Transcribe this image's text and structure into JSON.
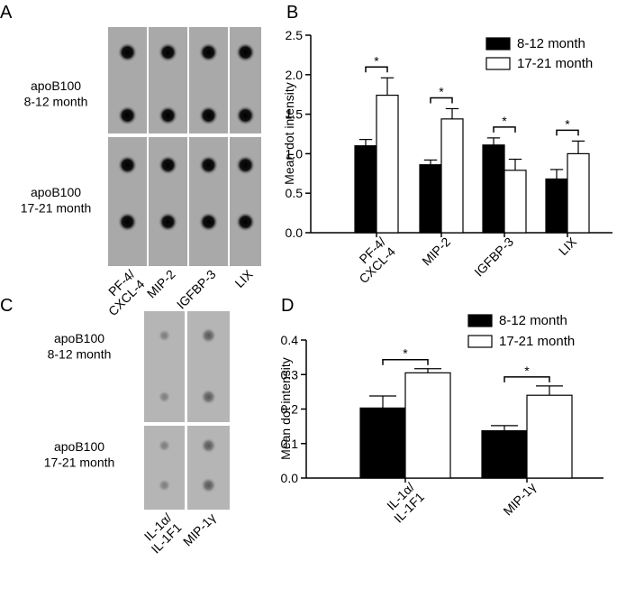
{
  "blots": [
    {
      "panel": "A",
      "row_labels": [
        [
          "apoB100",
          "8-12 month"
        ],
        [
          "apoB100",
          "17-21 month"
        ]
      ],
      "column_labels": [
        [
          "PF-4/",
          "CXCL-4"
        ],
        [
          "MIP-2"
        ],
        [
          "IGFBP-3"
        ],
        [
          "LIX"
        ]
      ]
    },
    {
      "panel": "C",
      "row_labels": [
        [
          "apoB100",
          "8-12 month"
        ],
        [
          "apoB100",
          "17-21 month"
        ]
      ],
      "column_labels": [
        [
          "IL-1α/",
          "IL-1F1"
        ],
        [
          "MIP-1γ"
        ]
      ]
    }
  ],
  "chart_data": [
    {
      "type": "bar",
      "panel": "B",
      "y_label": "Mean dot intensity",
      "categories": [
        [
          "PF-4/",
          "CXCL-4"
        ],
        [
          "MIP-2"
        ],
        [
          "IGFBP-3"
        ],
        [
          "LIX"
        ]
      ],
      "series": [
        {
          "name": "8-12 month",
          "color": "#000000",
          "values": [
            1.1,
            0.86,
            1.11,
            0.68
          ],
          "errors": [
            0.08,
            0.06,
            0.09,
            0.12
          ]
        },
        {
          "name": "17-21 month",
          "color": "#ffffff",
          "values": [
            1.74,
            1.44,
            0.79,
            1.0
          ],
          "errors": [
            0.22,
            0.13,
            0.14,
            0.16
          ]
        }
      ],
      "annotations": [
        "*",
        "*",
        "*",
        "*"
      ],
      "ylim": [
        0,
        2.5
      ],
      "yticks": [
        {
          "value": 0,
          "label": "0.0"
        },
        0.5,
        {
          "value": 1,
          "label": "1.0"
        },
        1.5,
        {
          "value": 2,
          "label": "2.0"
        },
        2.5
      ],
      "legend": "upper right"
    },
    {
      "type": "bar",
      "panel": "D",
      "y_label": "Mean dot intensity",
      "categories": [
        [
          "IL-1α/",
          "IL-1F1"
        ],
        [
          "MIP-1γ"
        ]
      ],
      "series": [
        {
          "name": "8-12 month",
          "color": "#000000",
          "values": [
            0.203,
            0.137
          ],
          "errors": [
            0.035,
            0.015
          ]
        },
        {
          "name": "17-21 month",
          "color": "#ffffff",
          "values": [
            0.305,
            0.24
          ],
          "errors": [
            0.012,
            0.027
          ]
        }
      ],
      "annotations": [
        "*",
        "*"
      ],
      "ylim": [
        0,
        0.4
      ],
      "yticks": [
        {
          "value": 0,
          "label": "0.0"
        },
        0.1,
        0.2,
        0.3,
        0.4
      ],
      "legend": "upper right"
    }
  ]
}
